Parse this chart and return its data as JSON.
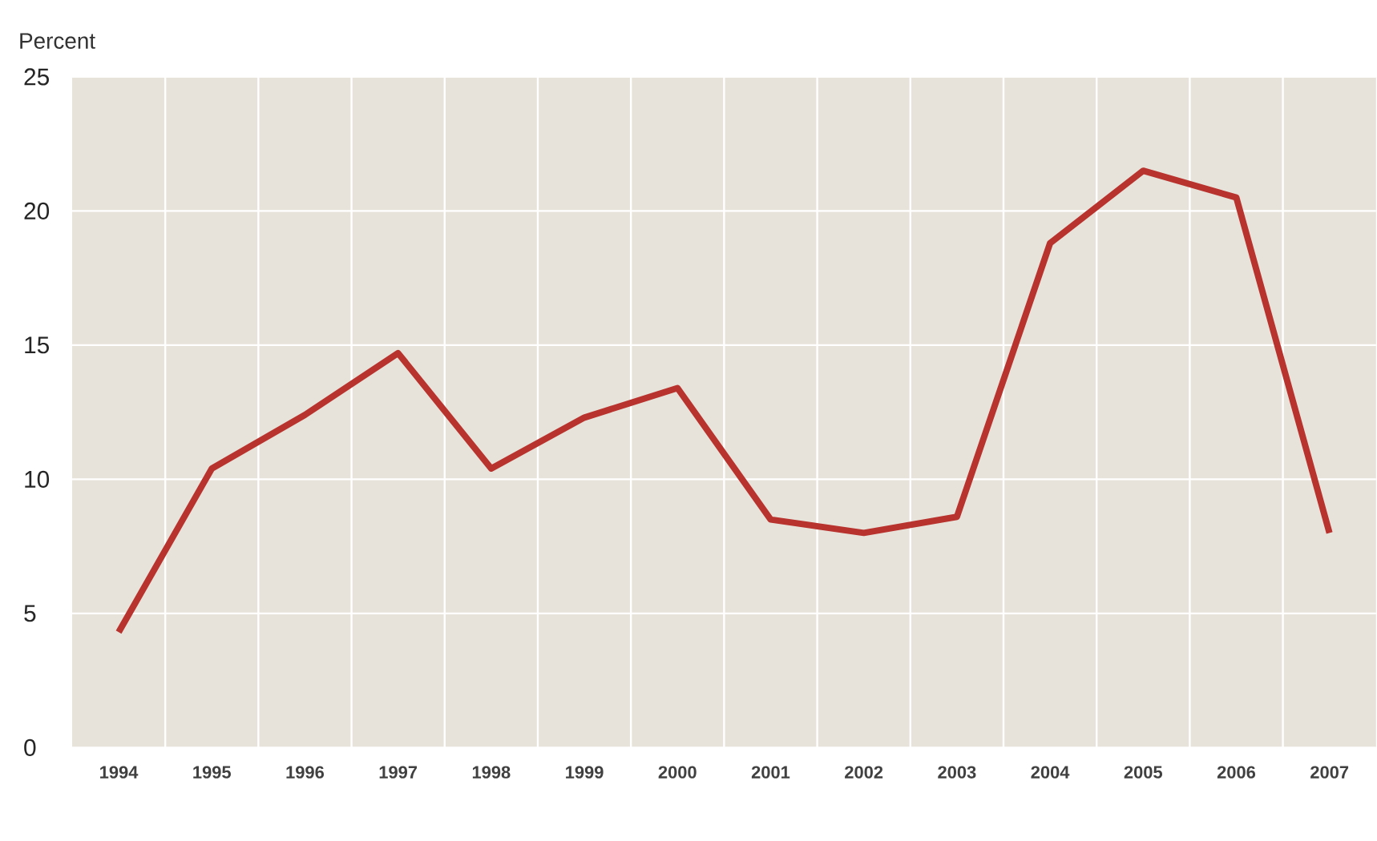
{
  "chart_data": {
    "type": "line",
    "ylabel": "Percent",
    "categories": [
      "1994",
      "1995",
      "1996",
      "1997",
      "1998",
      "1999",
      "2000",
      "2001",
      "2002",
      "2003",
      "2004",
      "2005",
      "2006",
      "2007"
    ],
    "series": [
      {
        "color": "#b8322e",
        "values": [
          4.3,
          10.4,
          12.4,
          14.7,
          10.4,
          12.3,
          13.4,
          8.5,
          8.0,
          8.6,
          18.8,
          21.5,
          20.5,
          8.0
        ]
      }
    ],
    "ylim": [
      0,
      25
    ],
    "yticks": [
      0,
      5,
      10,
      15,
      20,
      25
    ],
    "grid": true,
    "marker": "none",
    "line_style": "solid"
  }
}
